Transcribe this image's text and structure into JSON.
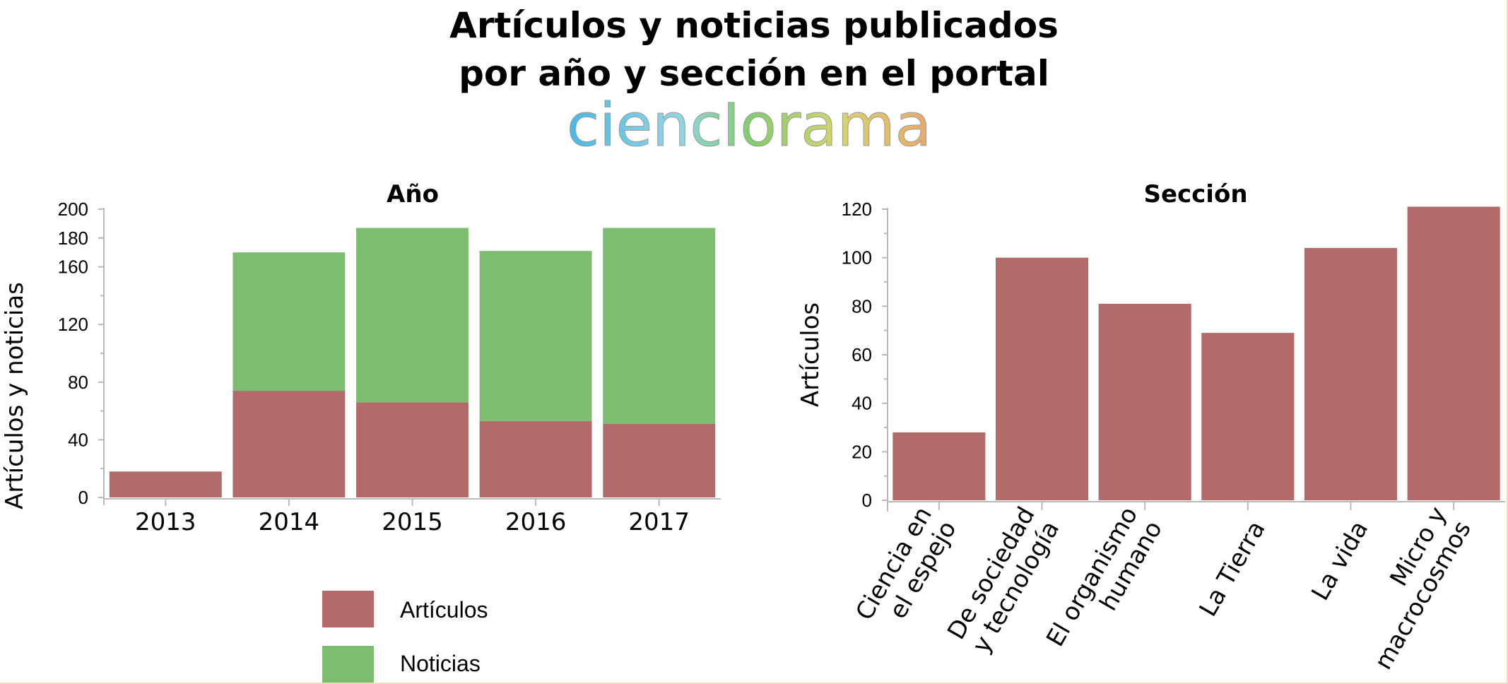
{
  "title_lines": [
    "Artículos y noticias publicados",
    "por año y sección en el portal"
  ],
  "logo_text": "ciencIorama",
  "colors": {
    "articulos": "#b36b6a",
    "noticias": "#7dbd70",
    "axis": "#b8b8b8",
    "frame": "#f0d9bd"
  },
  "chart_data": [
    {
      "type": "bar",
      "stacked": true,
      "title": "Año",
      "xlabel": "",
      "ylabel": "Artículos y noticias",
      "categories": [
        "2013",
        "2014",
        "2015",
        "2016",
        "2017"
      ],
      "series": [
        {
          "name": "Artículos",
          "values": [
            18,
            74,
            66,
            53,
            51
          ]
        },
        {
          "name": "Noticias",
          "values": [
            0,
            96,
            121,
            118,
            136
          ]
        }
      ],
      "ylim": [
        0,
        200
      ],
      "yticks": [
        "0",
        "40",
        "80",
        "120",
        "160",
        "180",
        "200"
      ],
      "legend_position": "bottom"
    },
    {
      "type": "bar",
      "title": "Sección",
      "xlabel": "",
      "ylabel": "Artículos",
      "categories": [
        [
          "Ciencia en",
          "el espejo"
        ],
        [
          "De sociedad",
          "y tecnología"
        ],
        [
          "El organismo",
          "humano"
        ],
        [
          "La Tierra"
        ],
        [
          "La vida"
        ],
        [
          "Micro y",
          "macrocosmos"
        ]
      ],
      "series": [
        {
          "name": "Artículos",
          "values": [
            28,
            100,
            81,
            69,
            104,
            121
          ]
        }
      ],
      "ylim": [
        0,
        120
      ],
      "yticks": [
        "0",
        "20",
        "40",
        "60",
        "80",
        "100",
        "120"
      ]
    }
  ]
}
